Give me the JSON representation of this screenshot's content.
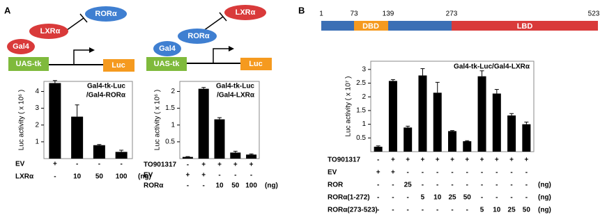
{
  "panel_labels": [
    "A",
    "B"
  ],
  "diagrams": [
    {
      "labels": [
        "RORα",
        "LXRα",
        "Gal4",
        "UAS-tk",
        "Luc"
      ]
    },
    {
      "labels": [
        "LXRα",
        "RORα",
        "Gal4",
        "UAS-tk",
        "Luc"
      ]
    }
  ],
  "domain_map": {
    "positions": [
      "1",
      "73",
      "139",
      "273",
      "523"
    ],
    "domains": [
      "DBD",
      "LBD"
    ]
  },
  "chart_data": [
    {
      "type": "bar",
      "ylabel": "Luc activity ( x 10⁶ )",
      "annotation": [
        "Gal4-tk-Luc",
        "/Gal4-RORα"
      ],
      "values": [
        4.5,
        2.5,
        0.8,
        0.4
      ],
      "errors": [
        0.15,
        0.7,
        0.04,
        0.1
      ],
      "color": "#000000",
      "ylim": [
        0,
        4.6
      ],
      "yticks": [
        1,
        2,
        3,
        4
      ],
      "conditions": [
        {
          "label": "EV",
          "cells": [
            "+",
            "-",
            "-",
            "-"
          ]
        },
        {
          "label": "LXRα",
          "cells": [
            "-",
            "10",
            "50",
            "100"
          ],
          "unit": "(ng)"
        }
      ]
    },
    {
      "type": "bar",
      "ylabel": "Luc activity ( x 10⁶ )",
      "annotation": [
        "Gal4-tk-Luc",
        "/Gal4-LXRα"
      ],
      "values": [
        0.05,
        2.08,
        1.17,
        0.18,
        0.12
      ],
      "errors": [
        0.01,
        0.04,
        0.05,
        0.04,
        0.02
      ],
      "color": "#000000",
      "ylim": [
        0,
        2.3
      ],
      "yticks": [
        0.5,
        1,
        1.5,
        2
      ],
      "conditions": [
        {
          "label": "TO901317",
          "cells": [
            "-",
            "+",
            "+",
            "+",
            "+"
          ]
        },
        {
          "label": "EV",
          "cells": [
            "+",
            "+",
            "-",
            "-",
            "-"
          ]
        },
        {
          "label": "RORα",
          "cells": [
            "-",
            "-",
            "10",
            "50",
            "100"
          ],
          "unit": "(ng)"
        }
      ]
    },
    {
      "type": "bar",
      "ylabel": "Luc activity ( x 10⁷ )",
      "annotation": [
        "Gal4-tk-Luc/Gal4-LXRα"
      ],
      "values": [
        0.18,
        2.58,
        0.88,
        2.78,
        2.15,
        0.75,
        0.38,
        2.75,
        2.12,
        1.32,
        1.0
      ],
      "errors": [
        0.03,
        0.05,
        0.05,
        0.25,
        0.38,
        0.02,
        0.02,
        0.2,
        0.15,
        0.07,
        0.08
      ],
      "color": "#000000",
      "ylim": [
        0,
        3.3
      ],
      "yticks": [
        0.5,
        1,
        1.5,
        2,
        2.5,
        3
      ],
      "conditions": [
        {
          "label": "TO901317",
          "cells": [
            "-",
            "+",
            "+",
            "+",
            "+",
            "+",
            "+",
            "+",
            "+",
            "+",
            "+"
          ]
        },
        {
          "label": "EV",
          "cells": [
            "+",
            "+",
            "-",
            "-",
            "-",
            "-",
            "-",
            "-",
            "-",
            "-",
            "-"
          ]
        },
        {
          "label": "ROR",
          "cells": [
            "-",
            "-",
            "25",
            "-",
            "-",
            "-",
            "-",
            "-",
            "-",
            "-",
            "-"
          ],
          "unit": "(ng)"
        },
        {
          "label": "RORα(1-272)",
          "cells": [
            "-",
            "-",
            "-",
            "5",
            "10",
            "25",
            "50",
            "-",
            "-",
            "-",
            "-"
          ],
          "unit": "(ng)"
        },
        {
          "label": "RORα(273-523)",
          "cells": [
            "-",
            "-",
            "-",
            "-",
            "-",
            "-",
            "-",
            "5",
            "10",
            "25",
            "50"
          ],
          "unit": "(ng)"
        }
      ]
    }
  ]
}
